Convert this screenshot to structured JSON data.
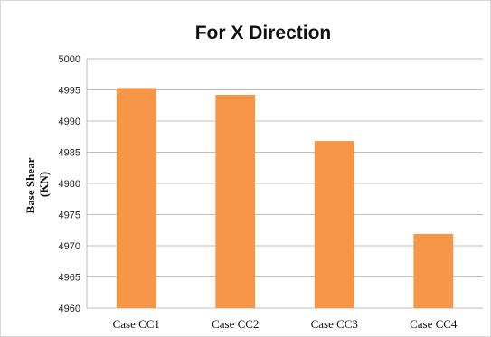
{
  "chart_data": {
    "type": "bar",
    "title": "For X Direction",
    "ylabel_lines": [
      "Base Shear",
      "(KN)"
    ],
    "xlabel": "",
    "categories": [
      "Case CC1",
      "Case CC2",
      "Case CC3",
      "Case CC4"
    ],
    "values": [
      4995.3,
      4994.2,
      4986.8,
      4971.9
    ],
    "ylim": [
      4960,
      5000
    ],
    "yticks": [
      4960,
      4965,
      4970,
      4975,
      4980,
      4985,
      4990,
      4995,
      5000
    ],
    "grid": true,
    "legend": "none",
    "bar_color": "#F79646",
    "grid_color": "#BFBFBF"
  }
}
